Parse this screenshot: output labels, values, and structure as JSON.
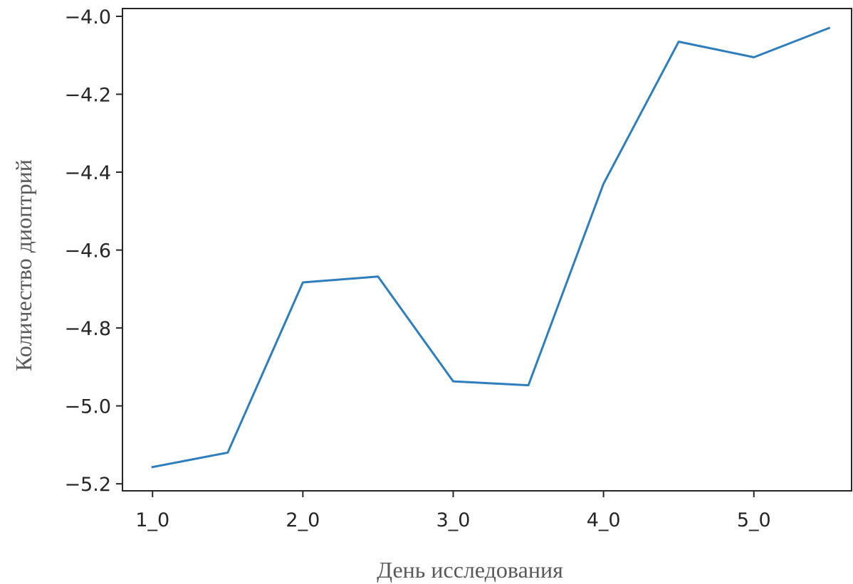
{
  "chart_data": {
    "type": "line",
    "title": "",
    "xlabel": "День исследования",
    "ylabel": "Количество диоптрий",
    "x_tick_labels": [
      "1_0",
      "2_0",
      "3_0",
      "4_0",
      "5_0"
    ],
    "x_tick_positions": [
      1,
      2,
      3,
      4,
      5
    ],
    "y_ticks": [
      -4.0,
      -4.2,
      -4.4,
      -4.6,
      -4.8,
      -5.0,
      -5.2
    ],
    "y_tick_labels": [
      "−4.0",
      "−4.2",
      "−4.4",
      "−4.6",
      "−4.8",
      "−5.0",
      "−5.2"
    ],
    "xlim": [
      0.8,
      5.65
    ],
    "ylim": [
      -5.218,
      -3.98
    ],
    "grid": false,
    "line_color": "#2f7ebc",
    "series": [
      {
        "x": [
          1.0,
          1.5,
          2.0,
          2.5,
          3.0,
          3.5,
          4.0,
          4.5,
          5.0,
          5.5
        ],
        "y": [
          -5.157,
          -5.12,
          -4.683,
          -4.668,
          -4.937,
          -4.947,
          -4.43,
          -4.065,
          -4.105,
          -4.03
        ]
      }
    ]
  }
}
